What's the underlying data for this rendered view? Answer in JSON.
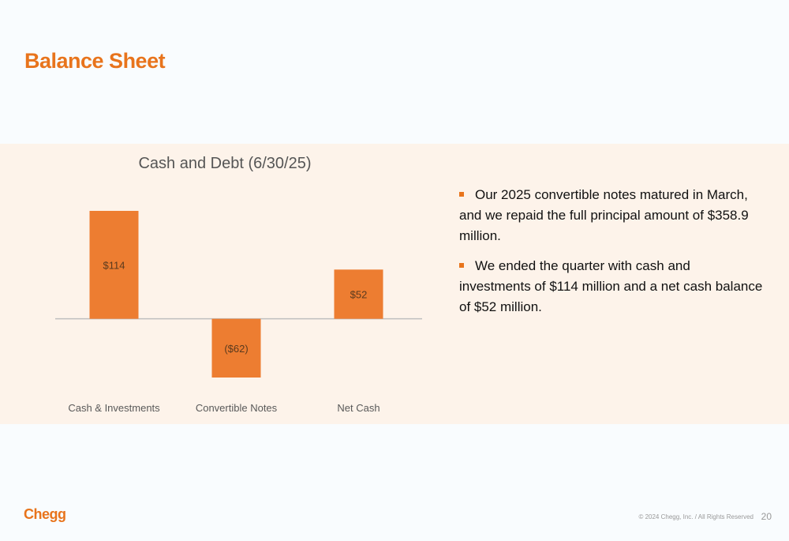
{
  "slide": {
    "title": "Balance Sheet",
    "accent_color": "#e8741c",
    "band_color": "#fdf3ea"
  },
  "chart_data": {
    "type": "bar",
    "title": "Cash and Debt (6/30/25)",
    "categories": [
      "Cash & Investments",
      "Convertible Notes",
      "Net Cash"
    ],
    "values": [
      114,
      -62,
      52
    ],
    "data_labels": [
      "$114",
      "($62)",
      "$52"
    ],
    "ylim": [
      -62,
      114
    ],
    "xlabel": "",
    "ylabel": "",
    "grid": false,
    "bar_color": "#ed7d31",
    "baseline_color": "#bfbfbf"
  },
  "bullets": [
    {
      "marker_color": "#e8741c",
      "text": "Our 2025 convertible notes matured in March, and we repaid the full principal amount of $358.9 million."
    },
    {
      "marker_color": "#e8741c",
      "text": "We ended the quarter with cash and investments of $114 million and a net cash balance of $52 million."
    }
  ],
  "footer": {
    "logo_text": "Chegg",
    "logo_color": "#e8741c",
    "copyright": "© 2024 Chegg, Inc. / All Rights Reserved",
    "page_number": "20"
  }
}
